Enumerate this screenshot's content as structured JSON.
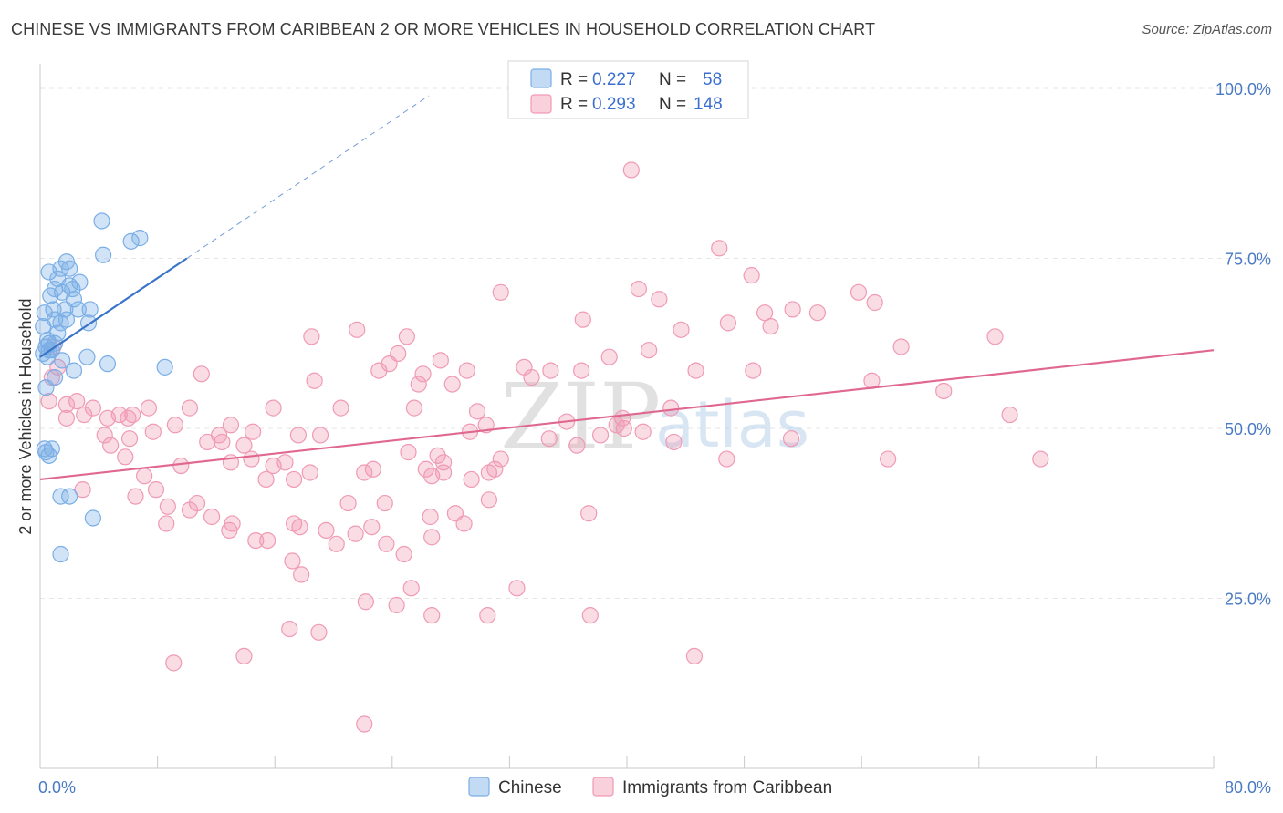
{
  "chart_data": {
    "type": "scatter",
    "title": "CHINESE VS IMMIGRANTS FROM CARIBBEAN 2 OR MORE VEHICLES IN HOUSEHOLD CORRELATION CHART",
    "source": "Source: ZipAtlas.com",
    "xlabel": "",
    "ylabel": "2 or more Vehicles in Household",
    "xlim": [
      0,
      80
    ],
    "ylim": [
      0,
      100
    ],
    "x_tick_labels": [
      "0.0%",
      "80.0%"
    ],
    "y_ticks": [
      25,
      50,
      75,
      100
    ],
    "y_tick_labels": [
      "25.0%",
      "50.0%",
      "75.0%",
      "100.0%"
    ],
    "watermark": {
      "part1": "ZIP",
      "part2": "atlas"
    },
    "legend": {
      "r_label": "R =",
      "n_label": "N =",
      "entries": [
        {
          "name": "Chinese",
          "r": "0.227",
          "n": "58",
          "color": "#7aaee6"
        },
        {
          "name": "Immigrants from Caribbean",
          "r": "0.293",
          "n": "148",
          "color": "#f09ab4"
        }
      ]
    },
    "series": [
      {
        "name": "Chinese",
        "color": "#7aaee6",
        "line_color": "#3a74c8",
        "trend": {
          "x0": 0,
          "y0": 60.5,
          "x1": 10,
          "y1": 75.0,
          "dash_to_x": 26.5
        },
        "points": [
          [
            4.2,
            80.5
          ],
          [
            6.8,
            78.0
          ],
          [
            6.2,
            77.5
          ],
          [
            4.3,
            75.5
          ],
          [
            1.8,
            74.5
          ],
          [
            1.4,
            73.5
          ],
          [
            0.6,
            73.0
          ],
          [
            2.0,
            73.5
          ],
          [
            1.2,
            72.0
          ],
          [
            2.7,
            71.5
          ],
          [
            2.0,
            71.0
          ],
          [
            1.0,
            70.5
          ],
          [
            2.2,
            70.5
          ],
          [
            1.5,
            70.0
          ],
          [
            0.7,
            69.5
          ],
          [
            2.3,
            69.0
          ],
          [
            0.9,
            67.5
          ],
          [
            1.7,
            67.5
          ],
          [
            2.6,
            67.5
          ],
          [
            3.4,
            67.5
          ],
          [
            0.3,
            67.0
          ],
          [
            1.0,
            66.0
          ],
          [
            1.8,
            66.0
          ],
          [
            1.4,
            65.5
          ],
          [
            3.3,
            65.5
          ],
          [
            0.2,
            65.0
          ],
          [
            1.2,
            64.0
          ],
          [
            0.5,
            63.0
          ],
          [
            1.0,
            62.5
          ],
          [
            0.4,
            62.0
          ],
          [
            0.6,
            61.5
          ],
          [
            0.8,
            61.5
          ],
          [
            0.2,
            61.0
          ],
          [
            0.5,
            60.5
          ],
          [
            3.2,
            60.5
          ],
          [
            1.5,
            60.0
          ],
          [
            4.6,
            59.5
          ],
          [
            8.5,
            59.0
          ],
          [
            2.3,
            58.5
          ],
          [
            1.0,
            57.5
          ],
          [
            0.4,
            56.0
          ],
          [
            0.8,
            47.0
          ],
          [
            0.4,
            46.5
          ],
          [
            0.6,
            46.0
          ],
          [
            1.4,
            40.0
          ],
          [
            2.0,
            40.0
          ],
          [
            3.6,
            36.8
          ],
          [
            1.4,
            31.5
          ],
          [
            0.3,
            47.0
          ],
          [
            0.6,
            62.5
          ]
        ]
      },
      {
        "name": "Immigrants from Caribbean",
        "color": "#f09ab4",
        "line_color": "#e06890",
        "trend": {
          "x0": 0,
          "y0": 42.5,
          "x1": 80,
          "y1": 61.5
        },
        "points": [
          [
            40.3,
            88.0
          ],
          [
            46.3,
            76.5
          ],
          [
            48.5,
            72.5
          ],
          [
            40.8,
            70.5
          ],
          [
            31.4,
            70.0
          ],
          [
            42.2,
            69.0
          ],
          [
            55.8,
            70.0
          ],
          [
            56.9,
            68.5
          ],
          [
            49.4,
            67.0
          ],
          [
            51.3,
            67.5
          ],
          [
            53.0,
            67.0
          ],
          [
            37.0,
            66.0
          ],
          [
            49.8,
            65.0
          ],
          [
            46.9,
            65.5
          ],
          [
            43.7,
            64.5
          ],
          [
            21.6,
            64.5
          ],
          [
            18.5,
            63.5
          ],
          [
            25.0,
            63.5
          ],
          [
            65.1,
            63.5
          ],
          [
            58.7,
            62.0
          ],
          [
            41.5,
            61.5
          ],
          [
            24.4,
            61.0
          ],
          [
            38.8,
            60.5
          ],
          [
            27.3,
            60.0
          ],
          [
            23.8,
            59.5
          ],
          [
            33.0,
            59.0
          ],
          [
            29.1,
            58.5
          ],
          [
            23.1,
            58.5
          ],
          [
            34.8,
            58.5
          ],
          [
            36.9,
            58.5
          ],
          [
            44.7,
            58.5
          ],
          [
            48.6,
            58.5
          ],
          [
            26.1,
            58.0
          ],
          [
            11.0,
            58.0
          ],
          [
            33.5,
            57.5
          ],
          [
            18.7,
            57.0
          ],
          [
            25.8,
            56.5
          ],
          [
            56.7,
            57.0
          ],
          [
            0.8,
            57.5
          ],
          [
            2.5,
            54.0
          ],
          [
            0.6,
            54.0
          ],
          [
            1.8,
            53.5
          ],
          [
            3.6,
            53.0
          ],
          [
            7.4,
            53.0
          ],
          [
            10.2,
            53.0
          ],
          [
            15.9,
            53.0
          ],
          [
            20.5,
            53.0
          ],
          [
            25.5,
            53.0
          ],
          [
            43.0,
            53.0
          ],
          [
            29.8,
            52.5
          ],
          [
            3.0,
            52.0
          ],
          [
            5.4,
            52.0
          ],
          [
            6.3,
            52.0
          ],
          [
            4.6,
            51.5
          ],
          [
            6.0,
            51.5
          ],
          [
            1.8,
            51.5
          ],
          [
            13.0,
            50.5
          ],
          [
            9.2,
            50.5
          ],
          [
            30.4,
            50.5
          ],
          [
            35.9,
            51.0
          ],
          [
            39.3,
            50.5
          ],
          [
            66.1,
            52.0
          ],
          [
            61.6,
            55.5
          ],
          [
            29.3,
            49.5
          ],
          [
            39.8,
            50.0
          ],
          [
            41.1,
            49.5
          ],
          [
            7.7,
            49.5
          ],
          [
            4.4,
            49.0
          ],
          [
            14.5,
            49.5
          ],
          [
            12.2,
            49.0
          ],
          [
            17.6,
            49.0
          ],
          [
            19.1,
            49.0
          ],
          [
            6.1,
            48.5
          ],
          [
            4.8,
            47.5
          ],
          [
            13.9,
            47.5
          ],
          [
            11.4,
            48.0
          ],
          [
            12.4,
            48.0
          ],
          [
            34.7,
            48.5
          ],
          [
            43.2,
            48.0
          ],
          [
            51.2,
            48.5
          ],
          [
            25.1,
            46.5
          ],
          [
            27.1,
            46.0
          ],
          [
            31.4,
            45.5
          ],
          [
            27.5,
            45.0
          ],
          [
            13.0,
            45.0
          ],
          [
            14.4,
            45.5
          ],
          [
            16.7,
            45.0
          ],
          [
            57.8,
            45.5
          ],
          [
            46.8,
            45.5
          ],
          [
            68.2,
            45.5
          ],
          [
            5.8,
            45.8
          ],
          [
            9.6,
            44.5
          ],
          [
            15.9,
            44.5
          ],
          [
            22.1,
            43.5
          ],
          [
            22.7,
            44.0
          ],
          [
            26.3,
            44.0
          ],
          [
            27.5,
            43.5
          ],
          [
            18.4,
            43.5
          ],
          [
            30.6,
            43.5
          ],
          [
            31.0,
            44.0
          ],
          [
            7.1,
            43.0
          ],
          [
            26.7,
            43.0
          ],
          [
            17.3,
            42.5
          ],
          [
            15.4,
            42.5
          ],
          [
            29.4,
            42.5
          ],
          [
            7.9,
            41.0
          ],
          [
            2.9,
            41.0
          ],
          [
            6.5,
            40.0
          ],
          [
            30.6,
            39.5
          ],
          [
            23.5,
            39.0
          ],
          [
            21.0,
            39.0
          ],
          [
            10.7,
            39.0
          ],
          [
            8.7,
            38.5
          ],
          [
            10.2,
            38.0
          ],
          [
            28.3,
            37.5
          ],
          [
            37.4,
            37.5
          ],
          [
            26.6,
            37.0
          ],
          [
            11.7,
            37.0
          ],
          [
            8.6,
            36.0
          ],
          [
            13.1,
            36.0
          ],
          [
            17.3,
            36.0
          ],
          [
            28.9,
            36.0
          ],
          [
            22.6,
            35.5
          ],
          [
            17.7,
            35.5
          ],
          [
            12.9,
            35.0
          ],
          [
            19.5,
            35.0
          ],
          [
            21.5,
            34.5
          ],
          [
            26.7,
            34.0
          ],
          [
            14.7,
            33.5
          ],
          [
            15.5,
            33.5
          ],
          [
            20.2,
            33.0
          ],
          [
            23.6,
            33.0
          ],
          [
            24.8,
            31.5
          ],
          [
            17.2,
            30.5
          ],
          [
            17.8,
            28.5
          ],
          [
            25.3,
            26.5
          ],
          [
            32.5,
            26.5
          ],
          [
            22.2,
            24.5
          ],
          [
            24.3,
            24.0
          ],
          [
            26.7,
            22.5
          ],
          [
            37.5,
            22.5
          ],
          [
            30.5,
            22.5
          ],
          [
            17.0,
            20.5
          ],
          [
            19.0,
            20.0
          ],
          [
            13.9,
            16.5
          ],
          [
            44.6,
            16.5
          ],
          [
            9.1,
            15.5
          ],
          [
            22.1,
            6.5
          ],
          [
            28.1,
            56.5
          ],
          [
            38.2,
            49.0
          ],
          [
            39.7,
            51.5
          ],
          [
            36.6,
            47.5
          ],
          [
            1.2,
            59.0
          ],
          [
            0.9,
            62.0
          ]
        ]
      }
    ]
  }
}
